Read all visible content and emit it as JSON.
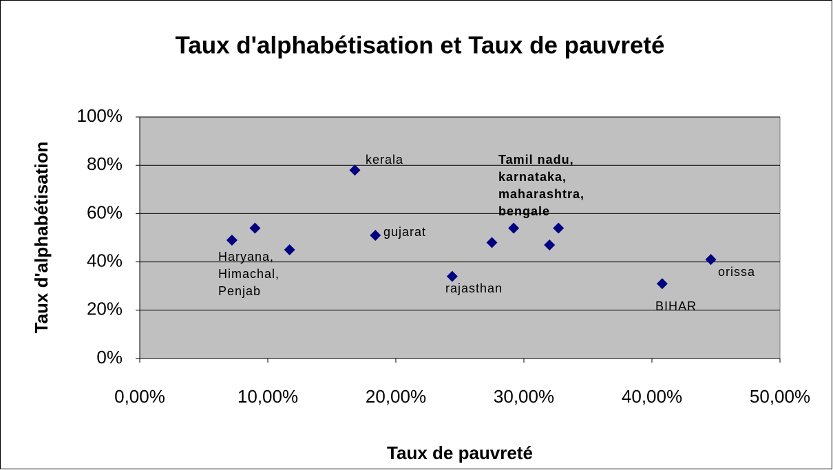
{
  "chart_data": {
    "type": "scatter",
    "title": "Taux d'alphabétisation et Taux de pauvreté",
    "x_label": "Taux de pauvreté",
    "y_label": "Taux d'alphabétisation",
    "x": [
      7.2,
      9.0,
      11.7,
      16.8,
      18.4,
      24.4,
      27.5,
      29.2,
      32.0,
      32.7,
      40.8,
      44.6
    ],
    "values": [
      49,
      54,
      45,
      78,
      51,
      34,
      48,
      54,
      47,
      54,
      31,
      41
    ],
    "color": "#000080",
    "xlim": [
      0,
      50
    ],
    "ylim": [
      0,
      100
    ],
    "xticks": [
      {
        "value": 0,
        "label": "0,00%"
      },
      {
        "value": 10,
        "label": "10,00%"
      },
      {
        "value": 20,
        "label": "20,00%"
      },
      {
        "value": 30,
        "label": "30,00%"
      },
      {
        "value": 40,
        "label": "40,00%"
      },
      {
        "value": 50,
        "label": "50,00%"
      }
    ],
    "yticks": [
      {
        "value": 0,
        "label": "0%"
      },
      {
        "value": 20,
        "label": "20%"
      },
      {
        "value": 40,
        "label": "40%"
      },
      {
        "value": 60,
        "label": "60%"
      },
      {
        "value": 80,
        "label": "80%"
      },
      {
        "value": 100,
        "label": "100%"
      }
    ],
    "grid": true,
    "annotations": [
      [
        "Haryana,",
        "Himachal,",
        "Penjab"
      ],
      [
        "kerala"
      ],
      [
        "gujarat"
      ],
      [
        "rajasthan"
      ],
      [
        "Tamil nadu,",
        "karnataka,",
        "maharashtra,",
        "bengale"
      ],
      [
        "BIHAR"
      ],
      [
        "orissa"
      ]
    ]
  }
}
